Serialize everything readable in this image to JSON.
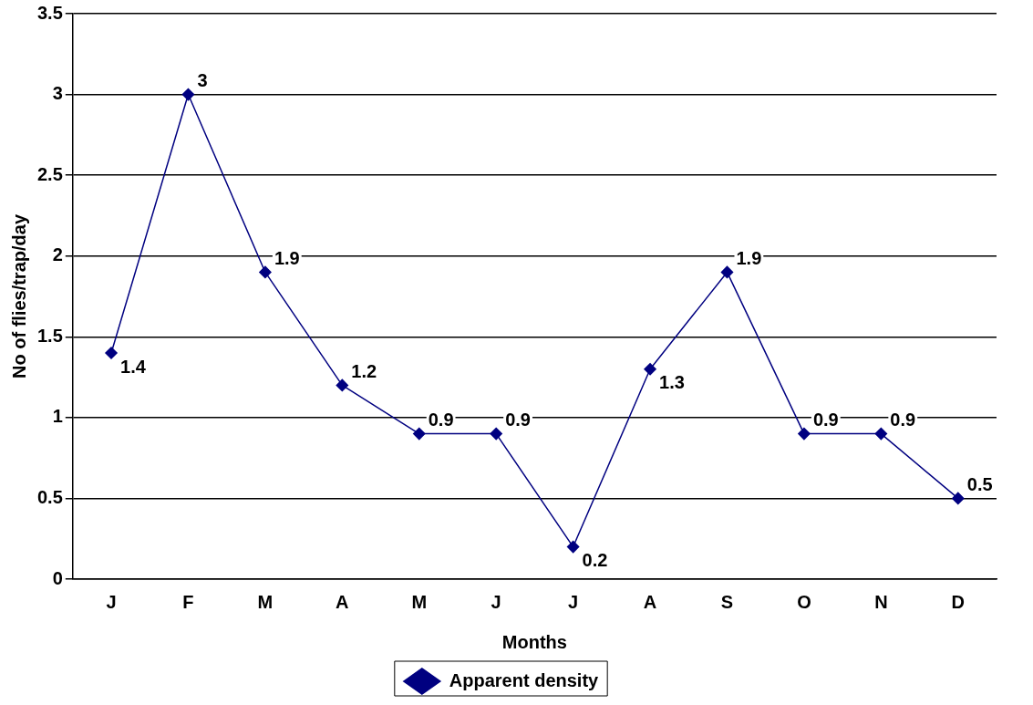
{
  "chart_data": {
    "type": "line",
    "xlabel": "Months",
    "ylabel": "No of flies/trap/day",
    "categories": [
      "J",
      "F",
      "M",
      "A",
      "M",
      "J",
      "J",
      "A",
      "S",
      "O",
      "N",
      "D"
    ],
    "series": [
      {
        "name": "Apparent density",
        "color": "#000080",
        "values": [
          1.4,
          3,
          1.9,
          1.2,
          0.9,
          0.9,
          0.2,
          1.3,
          1.9,
          0.9,
          0.9,
          0.5
        ]
      }
    ],
    "ylim": [
      0,
      3.5
    ],
    "yticks": [
      0,
      0.5,
      1,
      1.5,
      2,
      2.5,
      3,
      3.5
    ],
    "grid": "y",
    "legend": "bottom",
    "marker": "diamond",
    "line_style": "solid",
    "data_labels": true
  }
}
